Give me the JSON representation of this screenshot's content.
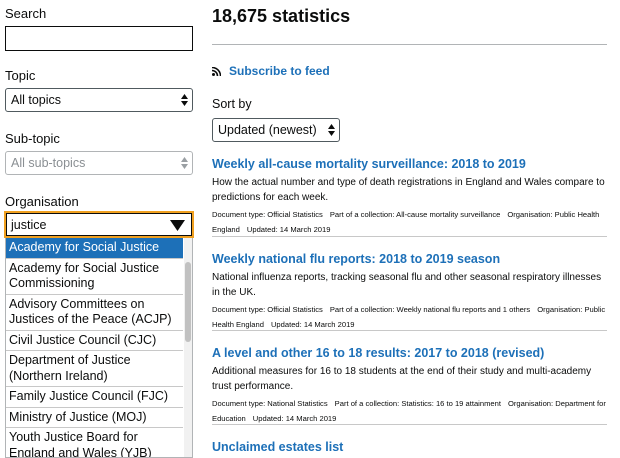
{
  "filters": {
    "search_label": "Search",
    "topic_label": "Topic",
    "topic_value": "All topics",
    "subtopic_label": "Sub-topic",
    "subtopic_value": "All sub-topics",
    "organisation_label": "Organisation",
    "organisation_input": "justice",
    "organisation_options": [
      "Academy for Social Justice",
      "Academy for Social Justice Commissioning",
      "Advisory Committees on Justices of the Peace (ACJP)",
      "Civil Justice Council (CJC)",
      "Department of Justice (Northern Ireland)",
      "Family Justice Council (FJC)",
      "Ministry of Justice (MOJ)",
      "Youth Justice Board for England and Wales (YJB)"
    ]
  },
  "results_count": "18,675 statistics",
  "subscribe": "Subscribe to feed",
  "sort_label": "Sort by",
  "sort_value": "Updated (newest)",
  "results": [
    {
      "title": "Weekly all-cause mortality surveillance: 2018 to 2019",
      "description": "How the actual number and type of death registrations in England and Wales compare to predictions for each week.",
      "metadata": [
        "Document type: Official Statistics",
        "Part of a collection: All-cause mortality surveillance",
        "Organisation: Public Health England",
        "Updated: 14 March 2019"
      ]
    },
    {
      "title": "Weekly national flu reports: 2018 to 2019 season",
      "description": "National influenza reports, tracking seasonal flu and other seasonal respiratory illnesses in the UK.",
      "metadata": [
        "Document type: Official Statistics",
        "Part of a collection: Weekly national flu reports and 1 others",
        "Organisation: Public Health England",
        "Updated: 14 March 2019"
      ]
    },
    {
      "title": "A level and other 16 to 18 results: 2017 to 2018 (revised)",
      "description": "Additional measures for 16 to 18 students at the end of their study and multi-academy trust performance.",
      "metadata": [
        "Document type: National Statistics",
        "Part of a collection: Statistics: 16 to 19 attainment",
        "Organisation: Department for Education",
        "Updated: 14 March 2019"
      ]
    },
    {
      "title": "Unclaimed estates list"
    }
  ]
}
